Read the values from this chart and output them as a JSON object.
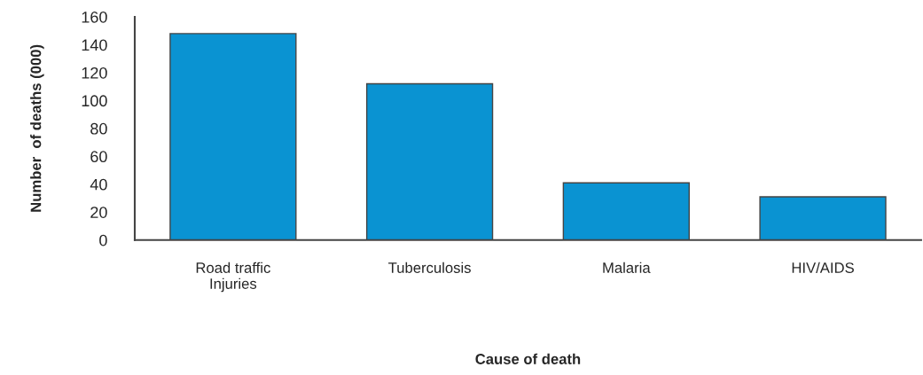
{
  "chart_data": {
    "type": "bar",
    "xlabel": "Cause of death",
    "ylabel": "Number  of deaths (000)",
    "categories": [
      "Road traffic\nInjuries",
      "Tuberculosis",
      "Malaria",
      "HIV/AIDS"
    ],
    "values": [
      148,
      112,
      41,
      31
    ],
    "color": "#0a93d2",
    "ylim": [
      0,
      160
    ],
    "yticks": [
      0,
      20,
      40,
      60,
      80,
      100,
      120,
      140,
      160
    ],
    "grid": false
  }
}
